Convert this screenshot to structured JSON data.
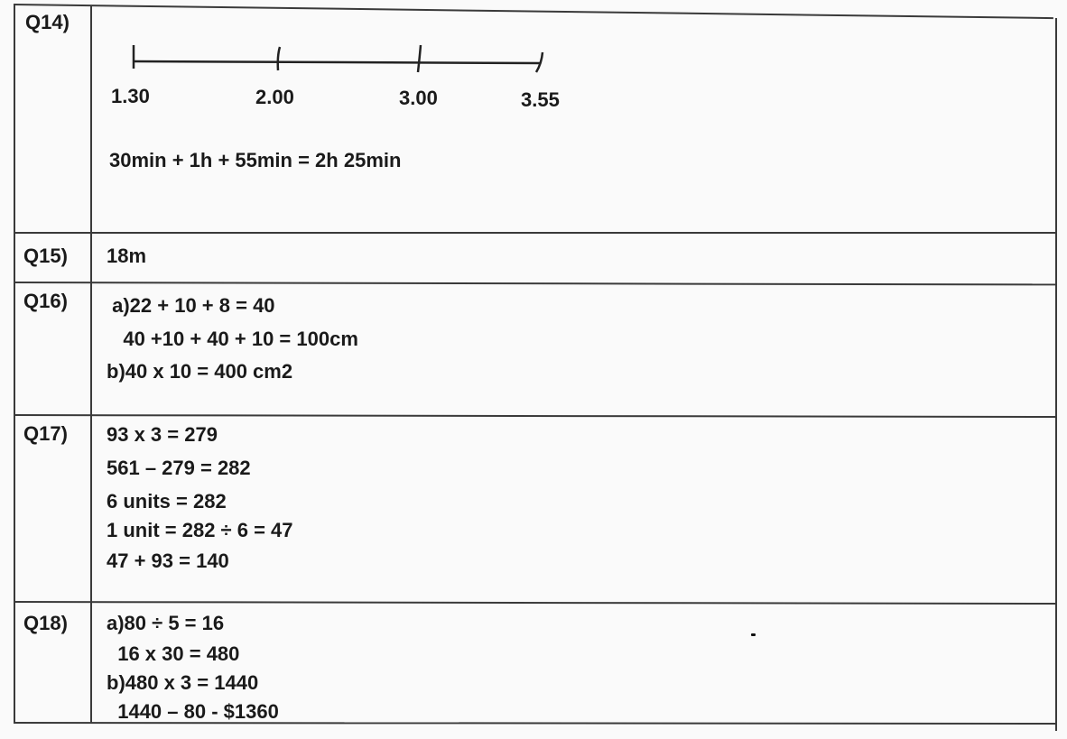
{
  "rows": [
    {
      "label": "Q14)",
      "number_line": {
        "ticks": [
          "1.30",
          "2.00",
          "3.00",
          "3.55"
        ]
      },
      "lines": [
        "30min + 1h + 55min = 2h 25min"
      ]
    },
    {
      "label": "Q15)",
      "lines": [
        "18m"
      ]
    },
    {
      "label": "Q16)",
      "lines": [
        " a)22 + 10 + 8 = 40",
        "   40 +10 + 40 + 10 = 100cm",
        "b)40 x 10 = 400 cm2"
      ]
    },
    {
      "label": "Q17)",
      "lines": [
        "93 x 3 = 279",
        "561 – 279 = 282",
        "6 units = 282",
        "1 unit = 282 ÷ 6 = 47",
        "47 + 93 = 140"
      ]
    },
    {
      "label": "Q18)",
      "lines": [
        "a)80 ÷ 5 = 16",
        "  16 x 30 = 480",
        "b)480 x 3 = 1440",
        "  1440 – 80 - $1360"
      ]
    }
  ]
}
